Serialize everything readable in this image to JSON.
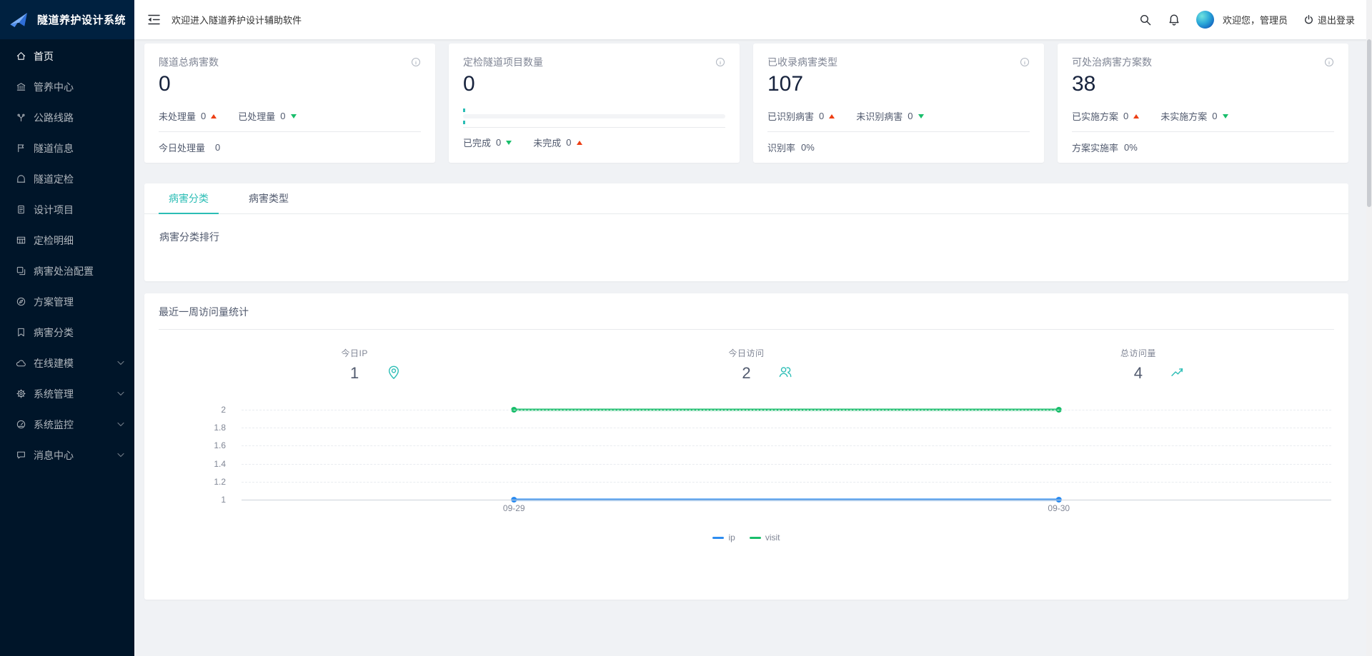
{
  "app": {
    "logo_title": "隧道养护设计系统"
  },
  "header": {
    "welcome_text": "欢迎进入隧道养护设计辅助软件",
    "greeting": "欢迎您，管理员",
    "logout_label": "退出登录",
    "icons": [
      "menu-fold-icon",
      "search-icon",
      "notification-bell-icon",
      "avatar",
      "power-icon"
    ]
  },
  "sidebar": {
    "items": [
      {
        "label": "首页",
        "icon": "home-icon",
        "active": true,
        "expandable": false
      },
      {
        "label": "管养中心",
        "icon": "bank-icon",
        "active": false,
        "expandable": false
      },
      {
        "label": "公路线路",
        "icon": "branch-icon",
        "active": false,
        "expandable": false
      },
      {
        "label": "隧道信息",
        "icon": "flag-icon",
        "active": false,
        "expandable": false
      },
      {
        "label": "隧道定检",
        "icon": "tunnel-icon",
        "active": false,
        "expandable": false
      },
      {
        "label": "设计项目",
        "icon": "project-file-icon",
        "active": false,
        "expandable": false
      },
      {
        "label": "定检明细",
        "icon": "table-icon",
        "active": false,
        "expandable": false
      },
      {
        "label": "病害处治配置",
        "icon": "copy-config-icon",
        "active": false,
        "expandable": false
      },
      {
        "label": "方案管理",
        "icon": "compass-icon",
        "active": false,
        "expandable": false
      },
      {
        "label": "病害分类",
        "icon": "bookmark-icon",
        "active": false,
        "expandable": false
      },
      {
        "label": "在线建模",
        "icon": "cloud-icon",
        "active": false,
        "expandable": true
      },
      {
        "label": "系统管理",
        "icon": "gear-icon",
        "active": false,
        "expandable": true
      },
      {
        "label": "系统监控",
        "icon": "gauge-icon",
        "active": false,
        "expandable": true
      },
      {
        "label": "消息中心",
        "icon": "message-icon",
        "active": false,
        "expandable": true
      }
    ]
  },
  "stat_cards": [
    {
      "title": "隧道总病害数",
      "info_icon": "info-circle-icon",
      "value": "0",
      "metrics": [
        {
          "label": "未处理量",
          "value": "0",
          "trend": "up"
        },
        {
          "label": "已处理量",
          "value": "0",
          "trend": "down"
        }
      ],
      "footer_label": "今日处理量",
      "footer_value": "0"
    },
    {
      "title": "定检隧道项目数量",
      "info_icon": "info-circle-icon",
      "value": "0",
      "progress_percent": 0,
      "metrics": [
        {
          "label": "已完成",
          "value": "0",
          "trend": "down"
        },
        {
          "label": "未完成",
          "value": "0",
          "trend": "up"
        }
      ]
    },
    {
      "title": "已收录病害类型",
      "info_icon": "info-circle-icon",
      "value": "107",
      "metrics": [
        {
          "label": "已识别病害",
          "value": "0",
          "trend": "up"
        },
        {
          "label": "未识别病害",
          "value": "0",
          "trend": "down"
        }
      ],
      "footer_label": "识别率",
      "footer_value": "0%"
    },
    {
      "title": "可处治病害方案数",
      "info_icon": "info-circle-icon",
      "value": "38",
      "metrics": [
        {
          "label": "已实施方案",
          "value": "0",
          "trend": "up"
        },
        {
          "label": "未实施方案",
          "value": "0",
          "trend": "down"
        }
      ],
      "footer_label": "方案实施率",
      "footer_value": "0%"
    }
  ],
  "tabs_section": {
    "tabs": [
      {
        "label": "病害分类",
        "active": true
      },
      {
        "label": "病害类型",
        "active": false
      }
    ],
    "panel_title": "病害分类排行"
  },
  "visits_section": {
    "title": "最近一周访问量统计",
    "stats": [
      {
        "label": "今日IP",
        "value": "1",
        "icon": "location-pin-icon"
      },
      {
        "label": "今日访问",
        "value": "2",
        "icon": "team-icon"
      },
      {
        "label": "总访问量",
        "value": "4",
        "icon": "trend-up-icon"
      }
    ],
    "chart_data": {
      "type": "line",
      "x": [
        "09-29",
        "09-30"
      ],
      "series": [
        {
          "name": "ip",
          "values": [
            1,
            1
          ],
          "color": "#2d8cf0"
        },
        {
          "name": "visit",
          "values": [
            2,
            2
          ],
          "color": "#19be6b"
        }
      ],
      "ylim": [
        1,
        2
      ],
      "yticks": [
        2,
        1.8,
        1.6,
        1.4,
        1.2,
        1
      ],
      "grid": true,
      "legend_position": "bottom"
    }
  },
  "colors": {
    "accent_teal": "#2bbdb5",
    "primary_blue": "#2d8cf0",
    "success_green": "#19be6b",
    "danger_red": "#ed3f14",
    "sidebar_bg": "#001529",
    "sidebar_logo_bg": "#002140",
    "page_bg": "#f0f2f5"
  }
}
